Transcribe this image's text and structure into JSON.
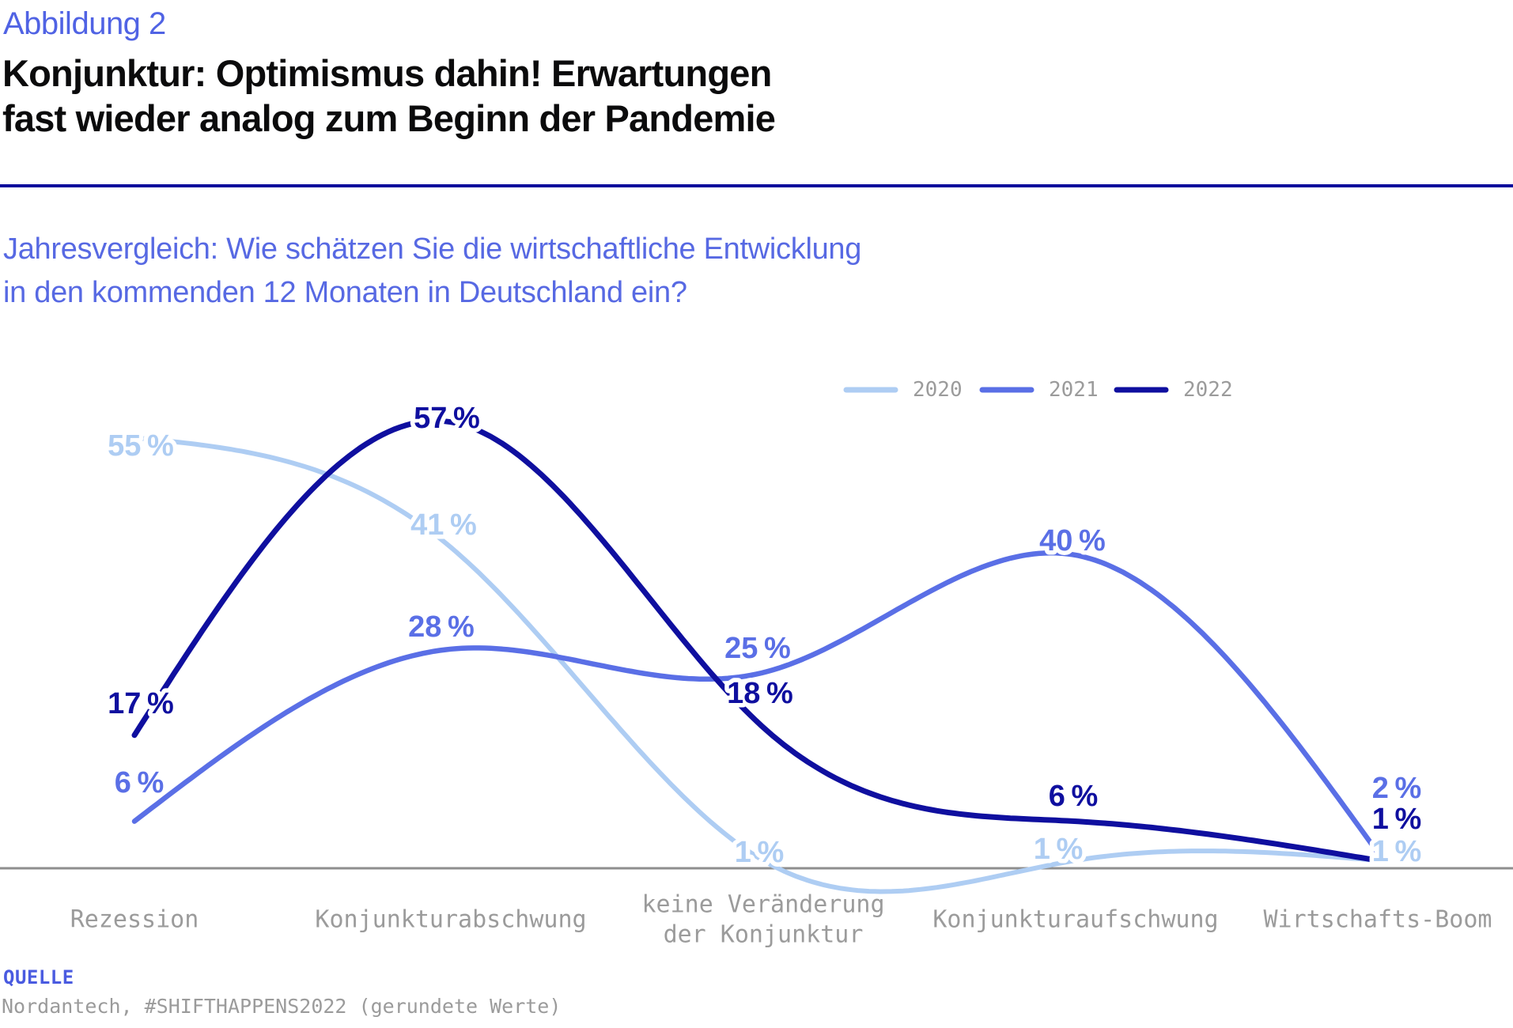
{
  "header": {
    "figure_label": "Abbildung 2",
    "title_lines": [
      "Konjunktur: Optimismus dahin! Erwartungen",
      "fast wieder analog zum Beginn der Pandemie"
    ],
    "subtitle_lines": [
      "Jahresvergleich: Wie schätzen Sie die wirtschaftliche Entwicklung",
      "in den kommenden 12 Monaten in Deutschland ein?"
    ]
  },
  "chart_data": {
    "type": "line",
    "title": "Jahresvergleich: Wie schätzen Sie die wirtschaftliche Entwicklung in den kommenden 12 Monaten in Deutschland ein?",
    "categories": [
      "Rezession",
      "Konjunkturabschwung",
      "keine Veränderung\nder Konjunktur",
      "Konjunkturaufschwung",
      "Wirtschafts-Boom"
    ],
    "series": [
      {
        "name": "2020",
        "color": "#aecdf3",
        "values": [
          55,
          41,
          1,
          1,
          1
        ]
      },
      {
        "name": "2021",
        "color": "#5a6fe6",
        "values": [
          6,
          28,
          25,
          40,
          2
        ]
      },
      {
        "name": "2022",
        "color": "#0f0f9f",
        "values": [
          17,
          57,
          18,
          6,
          1
        ]
      }
    ],
    "unit": "%",
    "ylim": [
      0,
      60
    ],
    "grid": false,
    "legend_position": "top-right",
    "curve": "natural-spline",
    "value_labels_shown": true
  },
  "legend": {
    "entries": [
      "2020",
      "2021",
      "2022"
    ],
    "text_color": "#9b9b9b"
  },
  "axis": {
    "line_color": "#8e8e8e",
    "label_color": "#9b9b9b"
  },
  "source": {
    "label": "QUELLE",
    "text": "Nordantech, #SHIFTHAPPENS2022 (gerundete Werte)"
  },
  "colors": {
    "figure_label": "#5063e4",
    "subtitle": "#5769e3",
    "divider": "#0a0a9b",
    "title": "#0b0b0c",
    "source_label": "#4a5be0",
    "source_text": "#9b9b9b"
  }
}
